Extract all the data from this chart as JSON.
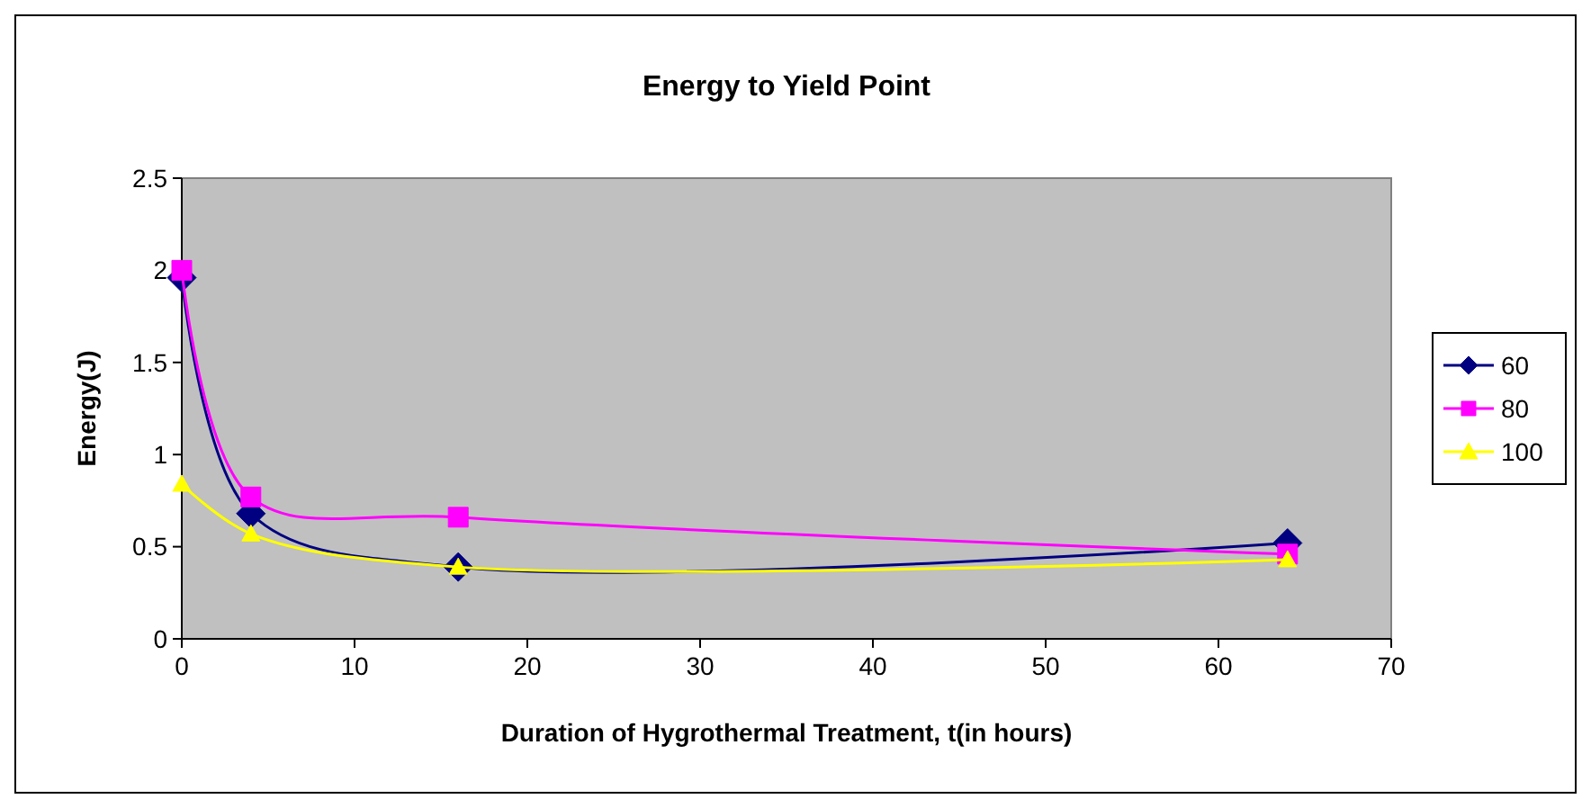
{
  "chart_data": {
    "type": "line",
    "title": "Energy to Yield Point",
    "xlabel": "Duration of Hygrothermal Treatment, t(in hours)",
    "ylabel": "Energy(J)",
    "x": [
      0,
      4,
      16,
      64
    ],
    "series": [
      {
        "name": "60",
        "color": "#000080",
        "values": [
          1.96,
          0.68,
          0.39,
          0.52
        ],
        "marker": "diamond"
      },
      {
        "name": "80",
        "color": "#ff00ff",
        "values": [
          2.0,
          0.77,
          0.66,
          0.46
        ],
        "marker": "square"
      },
      {
        "name": "100",
        "color": "#ffff00",
        "values": [
          0.84,
          0.57,
          0.39,
          0.43
        ],
        "marker": "triangle"
      }
    ],
    "xlim": [
      0,
      70
    ],
    "xticks": [
      0,
      10,
      20,
      30,
      40,
      50,
      60,
      70
    ],
    "ylim": [
      0,
      2.5
    ],
    "yticks": [
      0,
      0.5,
      1,
      1.5,
      2,
      2.5
    ],
    "grid": false,
    "legend": "right",
    "line_style": "solid"
  }
}
